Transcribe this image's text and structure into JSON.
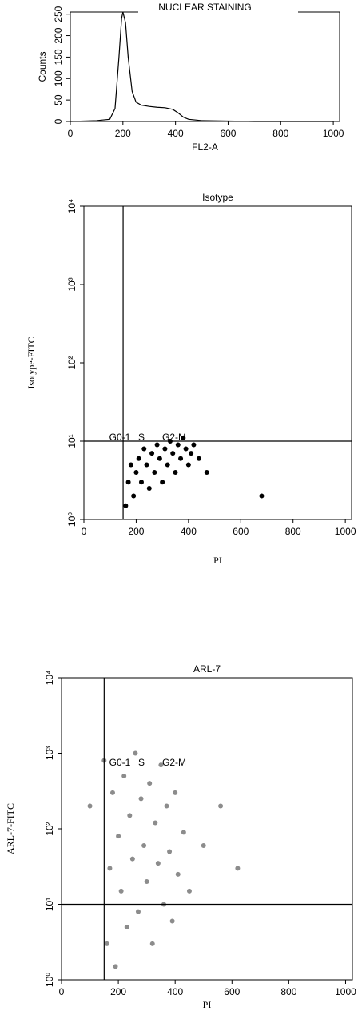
{
  "chart_data": [
    {
      "type": "line",
      "title": "NUCLEAR STAINING",
      "xlabel": "FL2-A",
      "ylabel": "Counts",
      "x": [
        0,
        100,
        150,
        170,
        185,
        195,
        200,
        210,
        220,
        235,
        250,
        270,
        300,
        330,
        360,
        390,
        410,
        430,
        450,
        500,
        600,
        700,
        1000
      ],
      "series": [
        {
          "name": "Counts",
          "color": "#000000",
          "values": [
            0,
            2,
            5,
            30,
            150,
            240,
            255,
            230,
            150,
            70,
            45,
            38,
            35,
            33,
            32,
            28,
            20,
            10,
            5,
            2,
            1,
            0,
            0
          ]
        }
      ],
      "xlim": [
        0,
        1024
      ],
      "ylim": [
        0,
        255
      ],
      "xticks": [
        0,
        200,
        400,
        600,
        800,
        1000
      ],
      "yticks": [
        0,
        50,
        100,
        150,
        200,
        250
      ]
    },
    {
      "type": "scatter",
      "title": "Isotype",
      "xlabel": "PI",
      "ylabel": "Isotype-FITC",
      "log_y": true,
      "x": [
        160,
        170,
        180,
        190,
        200,
        210,
        220,
        230,
        240,
        250,
        260,
        270,
        280,
        290,
        300,
        310,
        320,
        330,
        340,
        350,
        360,
        370,
        380,
        390,
        400,
        410,
        420,
        440,
        470,
        680
      ],
      "y": [
        1.5,
        3,
        5,
        2,
        4,
        6,
        3,
        8,
        5,
        2.5,
        7,
        4,
        9,
        6,
        3,
        8,
        5,
        10,
        7,
        4,
        9,
        6,
        11,
        8,
        5,
        7,
        9,
        6,
        4,
        2
      ],
      "color": "#000000",
      "gate_x": 150,
      "gate_y": 10,
      "annotations": [
        "G0-1",
        "S",
        "G2-M"
      ],
      "xlim": [
        0,
        1024
      ],
      "ylim": [
        1,
        10000
      ],
      "xticks": [
        0,
        200,
        400,
        600,
        800,
        1000
      ],
      "yticks": [
        {
          "value": 1,
          "label": "10⁰"
        },
        {
          "value": 10,
          "label": "10¹"
        },
        {
          "value": 100,
          "label": "10²"
        },
        {
          "value": 1000,
          "label": "10³"
        },
        {
          "value": 10000,
          "label": "10⁴"
        }
      ]
    },
    {
      "type": "scatter",
      "title": "ARL-7",
      "xlabel": "PI",
      "ylabel": "ARL-7-FITC",
      "log_y": true,
      "x": [
        100,
        150,
        160,
        170,
        180,
        190,
        200,
        210,
        220,
        230,
        240,
        250,
        260,
        270,
        280,
        290,
        300,
        310,
        320,
        330,
        340,
        350,
        360,
        370,
        380,
        390,
        400,
        410,
        430,
        450,
        500,
        560,
        620
      ],
      "y": [
        200,
        800,
        3,
        30,
        300,
        1.5,
        80,
        15,
        500,
        5,
        150,
        40,
        1000,
        8,
        250,
        60,
        20,
        400,
        3,
        120,
        35,
        700,
        10,
        200,
        50,
        6,
        300,
        25,
        90,
        15,
        60,
        200,
        30
      ],
      "color": "#8c8c8c",
      "gate_x": 150,
      "gate_y": 10,
      "annotations": [
        "G0-1",
        "S",
        "G2-M"
      ],
      "xlim": [
        0,
        1024
      ],
      "ylim": [
        1,
        10000
      ],
      "xticks": [
        0,
        200,
        400,
        600,
        800,
        1000
      ],
      "yticks": [
        {
          "value": 1,
          "label": "10⁰"
        },
        {
          "value": 10,
          "label": "10¹"
        },
        {
          "value": 100,
          "label": "10²"
        },
        {
          "value": 1000,
          "label": "10³"
        },
        {
          "value": 10000,
          "label": "10⁴"
        }
      ]
    }
  ]
}
